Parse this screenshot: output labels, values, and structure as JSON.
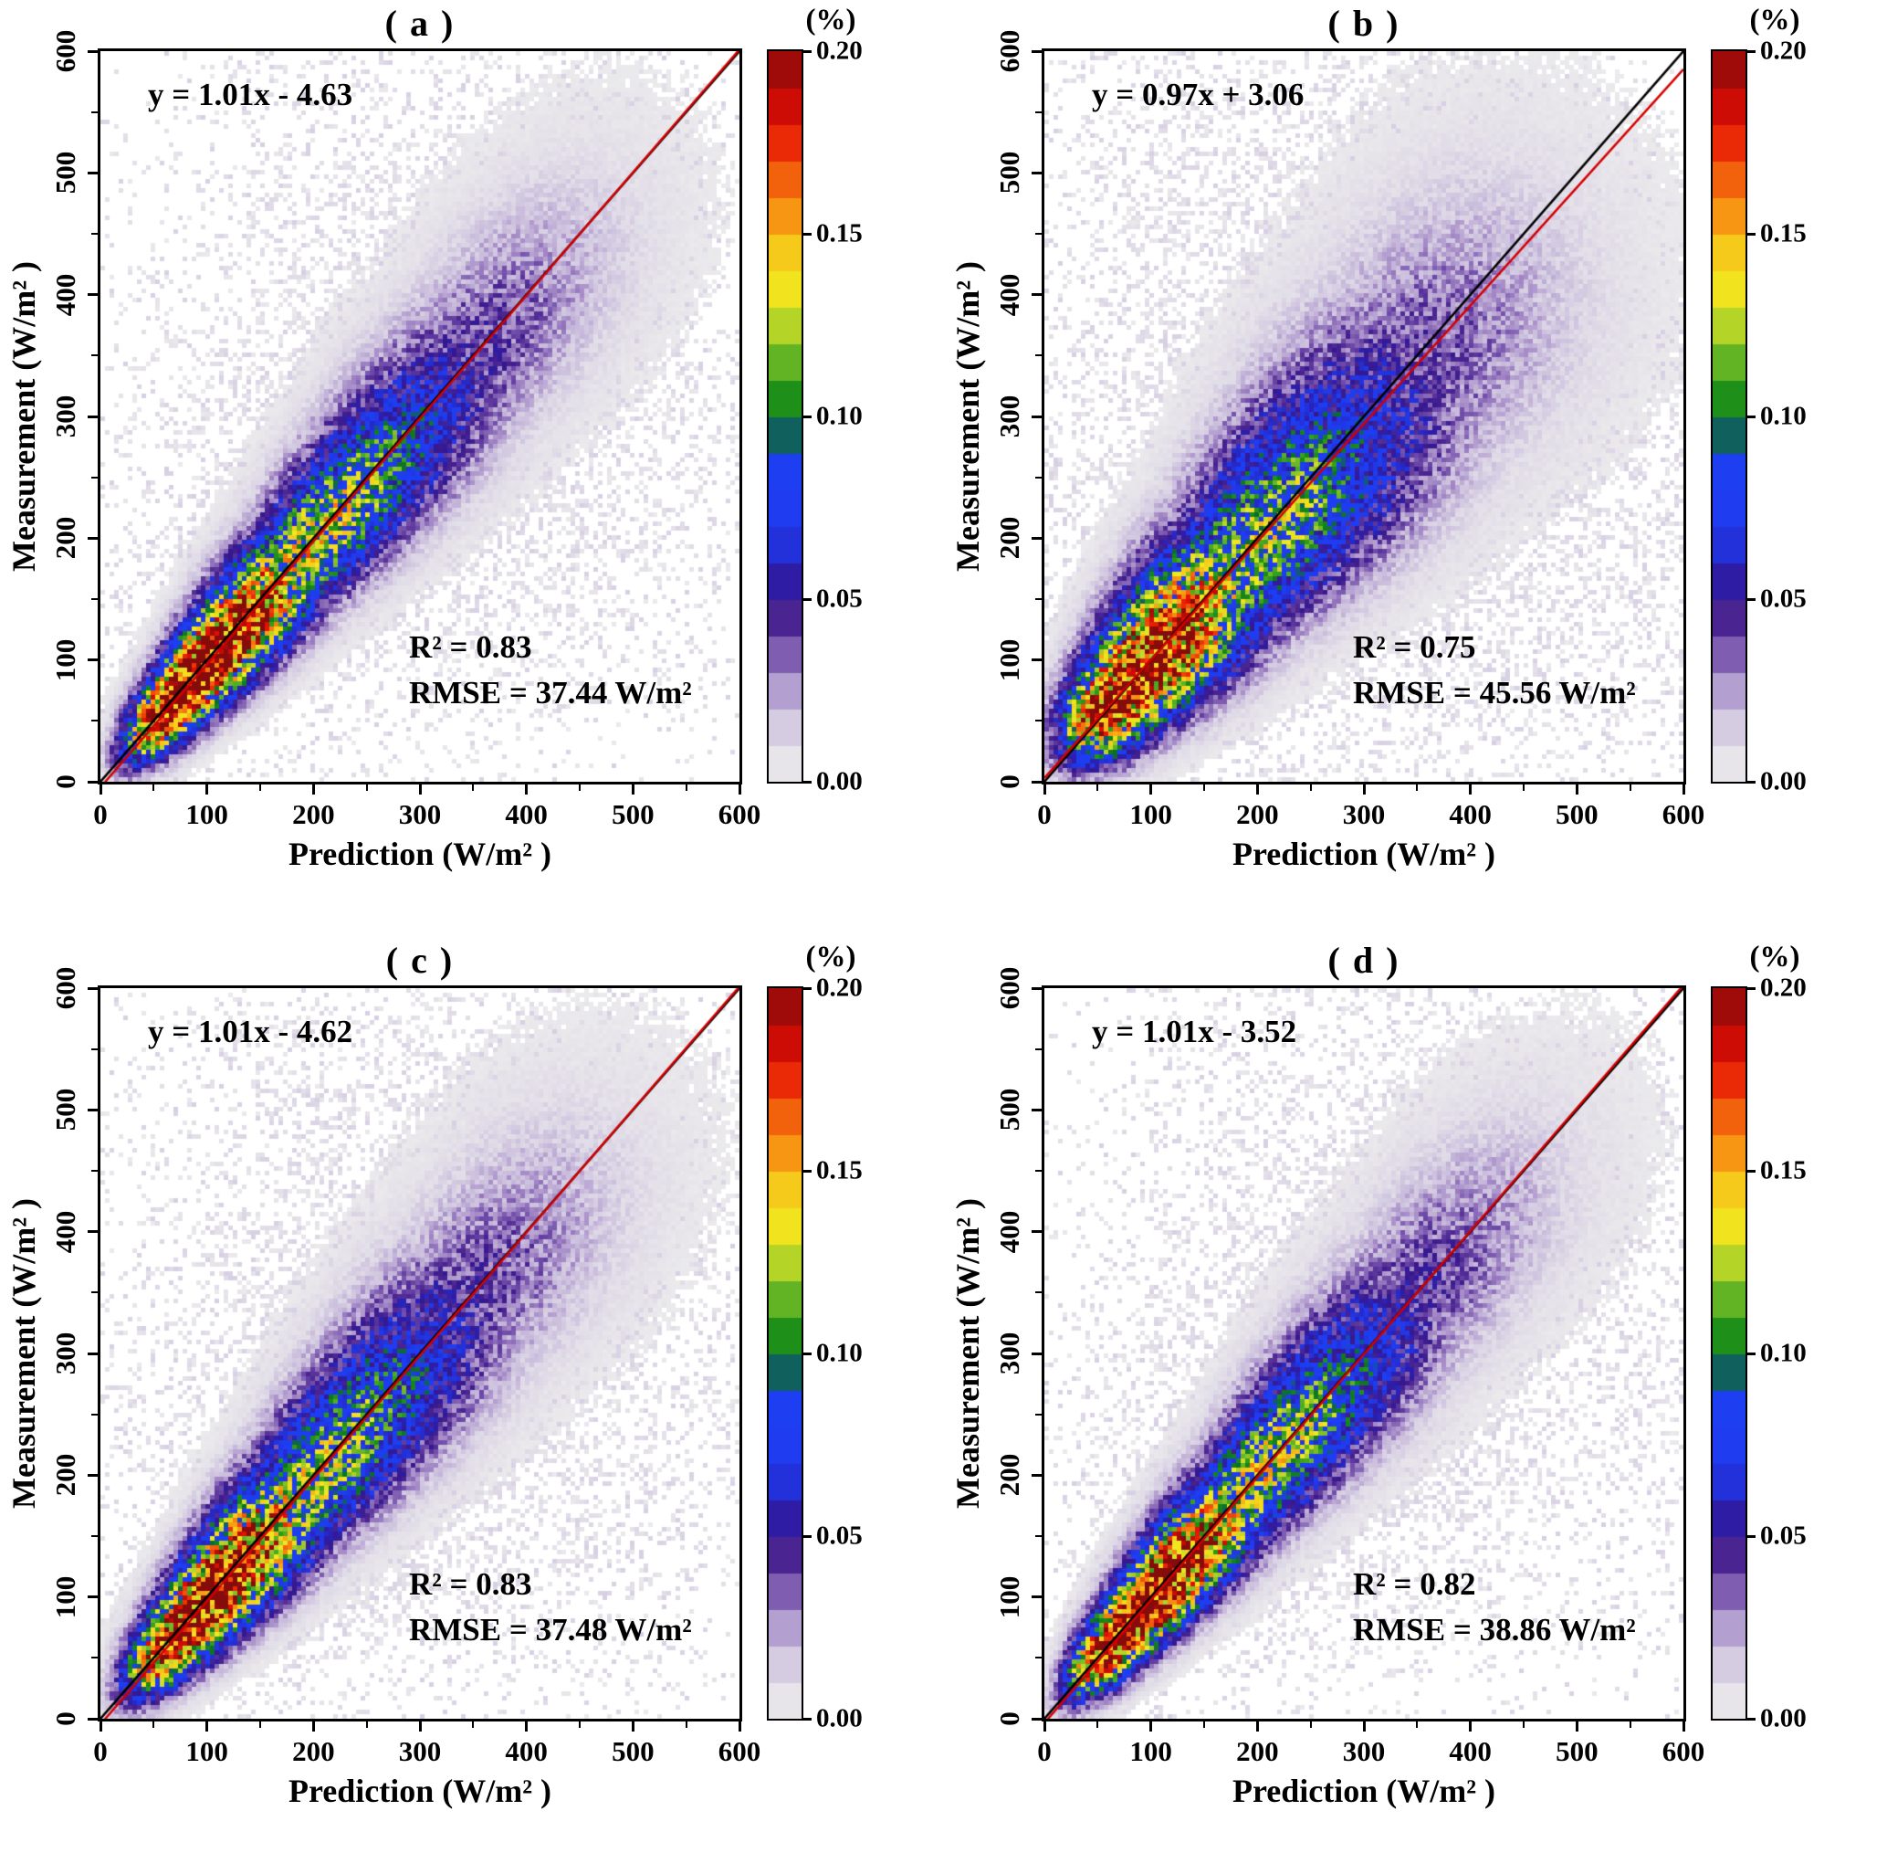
{
  "figure": {
    "background": "#ffffff"
  },
  "axes": {
    "xlabel": "Prediction (W/m² )",
    "ylabel": "Measurement (W/m² )",
    "xlim": [
      0,
      600
    ],
    "ylim": [
      0,
      600
    ],
    "ticks": [
      0,
      100,
      200,
      300,
      400,
      500,
      600
    ],
    "tick_labels": [
      "0",
      "100",
      "200",
      "300",
      "400",
      "500",
      "600"
    ],
    "minor_step": 50
  },
  "colorbar": {
    "title": "(%)",
    "tick_values": [
      0,
      0.05,
      0.1,
      0.15,
      0.2
    ],
    "tick_labels": [
      "0.00",
      "0.05",
      "0.10",
      "0.15",
      "0.20"
    ],
    "colormap_stops": [
      [
        0.0,
        "#ededed"
      ],
      [
        0.05,
        "#e0dbe7"
      ],
      [
        0.1,
        "#c9bcdc"
      ],
      [
        0.145,
        "#a489c6"
      ],
      [
        0.19,
        "#6d49a8"
      ],
      [
        0.225,
        "#4a2491"
      ],
      [
        0.255,
        "#35188f"
      ],
      [
        0.285,
        "#2b1fae"
      ],
      [
        0.32,
        "#2230d8"
      ],
      [
        0.38,
        "#1f3df2"
      ],
      [
        0.46,
        "#1b3ef0"
      ],
      [
        0.48,
        "#0c6c2c"
      ],
      [
        0.52,
        "#188c18"
      ],
      [
        0.56,
        "#4aaa22"
      ],
      [
        0.6,
        "#8cc428"
      ],
      [
        0.635,
        "#c6da28"
      ],
      [
        0.66,
        "#f0ea20"
      ],
      [
        0.72,
        "#f6cf1b"
      ],
      [
        0.76,
        "#f7a515"
      ],
      [
        0.81,
        "#f4720d"
      ],
      [
        0.86,
        "#ee3a07"
      ],
      [
        0.9,
        "#e31004"
      ],
      [
        0.94,
        "#c00a06"
      ],
      [
        1.0,
        "#860b0b"
      ]
    ]
  },
  "chart_data": {
    "type": "heatmap",
    "description": "Four 2D histogram density scatterplots of Measurement vs Prediction surface irradiance (W/m²); bin color gives percentage of samples (%), black line is 1:1, red line is the linear fit",
    "colorbar_range": [
      0,
      0.2
    ],
    "identity_line": {
      "color": "#000000"
    },
    "fit_line": {
      "color": "#d40000"
    },
    "panels": [
      {
        "id": "a",
        "title": "( a )",
        "equation": "y = 1.01x - 4.63",
        "fit": {
          "slope": 1.01,
          "intercept": -4.63
        },
        "r2": 0.83,
        "rmse_wm2": 37.44,
        "r2_label": "R²  = 0.83",
        "rmse_label": "RMSE = 37.44 W/m²",
        "density": {
          "peak": 0.225,
          "ridge_center": 95,
          "spread": 1.0,
          "seed": 1
        }
      },
      {
        "id": "b",
        "title": "( b )",
        "equation": "y = 0.97x + 3.06",
        "fit": {
          "slope": 0.97,
          "intercept": 3.06
        },
        "r2": 0.75,
        "rmse_wm2": 45.56,
        "r2_label": "R²  = 0.75",
        "rmse_label": "RMSE = 45.56 W/m²",
        "density": {
          "peak": 0.205,
          "ridge_center": 90,
          "spread": 1.45,
          "seed": 2
        }
      },
      {
        "id": "c",
        "title": "( c )",
        "equation": "y = 1.01x - 4.62",
        "fit": {
          "slope": 1.01,
          "intercept": -4.62
        },
        "r2": 0.83,
        "rmse_wm2": 37.48,
        "r2_label": "R²  = 0.83",
        "rmse_label": "RMSE = 37.48 W/m²",
        "density": {
          "peak": 0.215,
          "ridge_center": 100,
          "spread": 1.08,
          "seed": 3
        }
      },
      {
        "id": "d",
        "title": "( d )",
        "equation": "y = 1.01x - 3.52",
        "fit": {
          "slope": 1.01,
          "intercept": -3.52
        },
        "r2": 0.82,
        "rmse_wm2": 38.86,
        "r2_label": "R²  = 0.82",
        "rmse_label": "RMSE = 38.86 W/m²",
        "density": {
          "peak": 0.225,
          "ridge_center": 95,
          "spread": 0.97,
          "seed": 4
        }
      }
    ]
  }
}
